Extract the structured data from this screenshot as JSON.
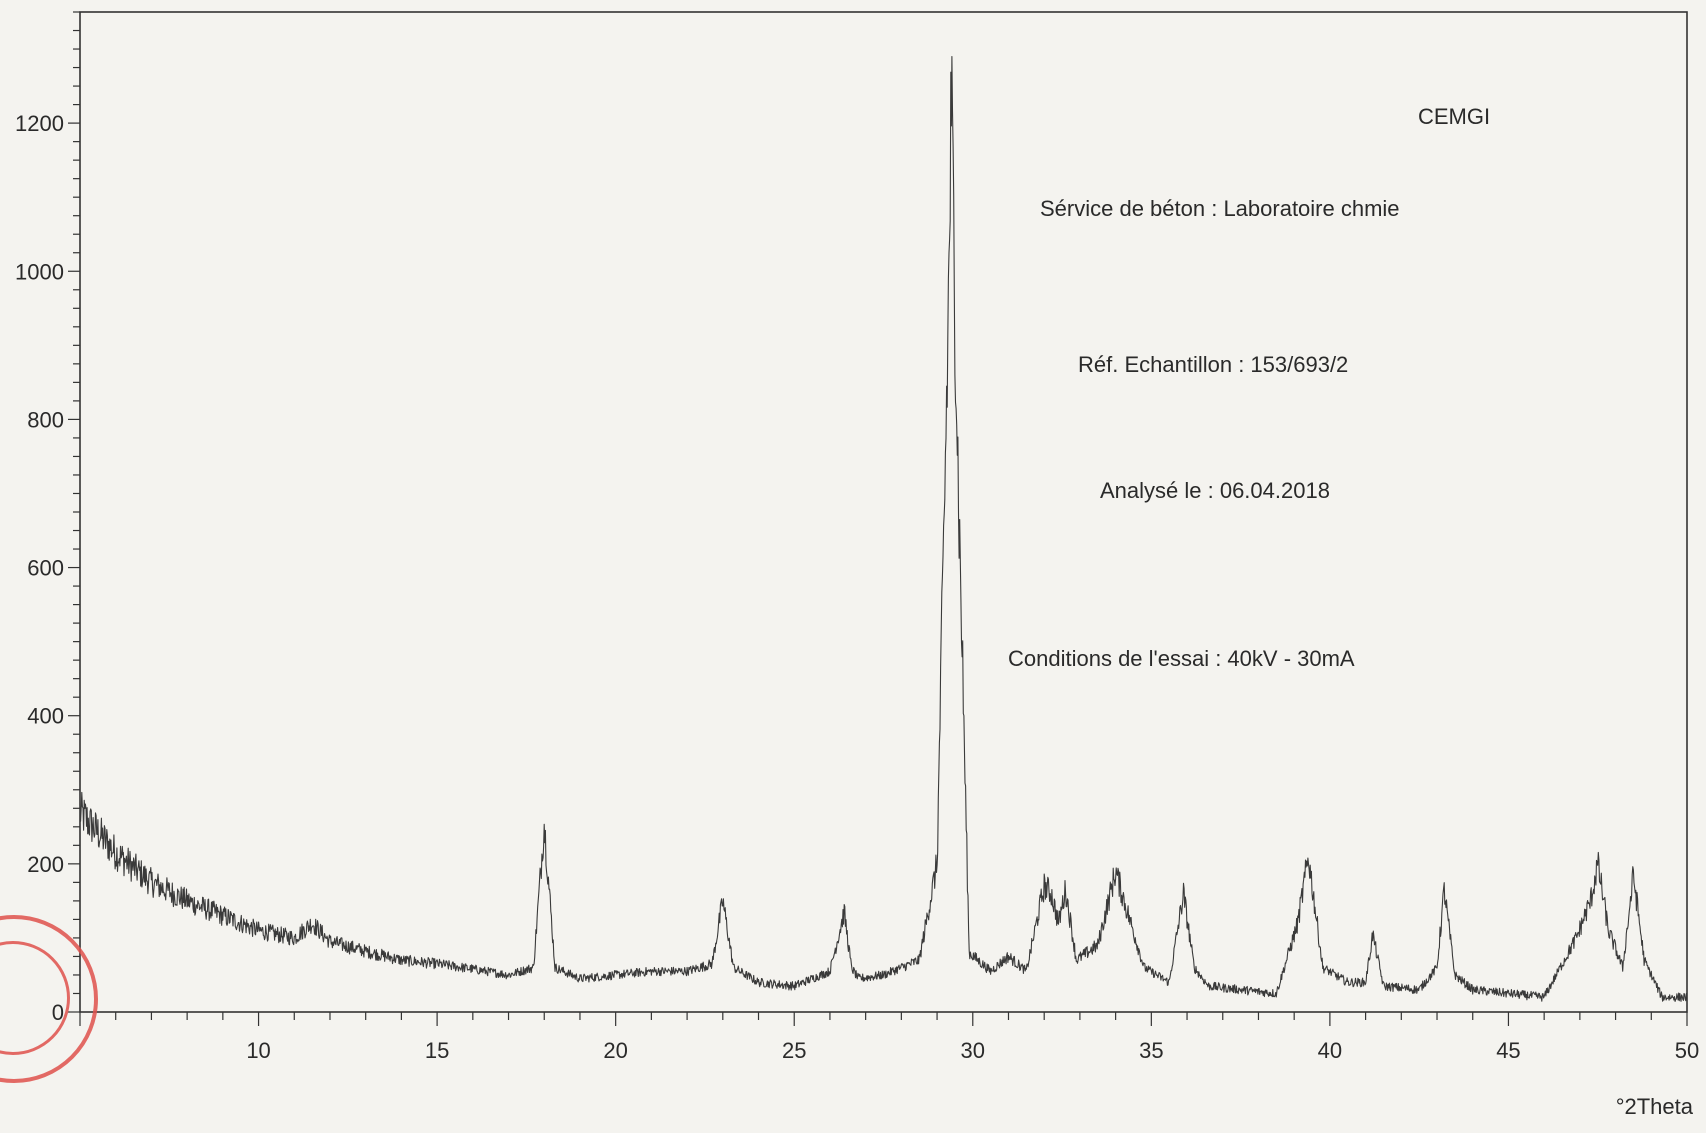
{
  "chart_data": {
    "type": "line",
    "title": "",
    "xlabel": "°2Theta",
    "ylabel": "",
    "xlim": [
      5,
      50
    ],
    "ylim": [
      0,
      1350
    ],
    "x_ticks": [
      10,
      15,
      20,
      25,
      30,
      35,
      40,
      45,
      50
    ],
    "y_ticks": [
      0,
      200,
      400,
      600,
      800,
      1000,
      1200
    ],
    "grid": false,
    "legend": "none",
    "annotations": {
      "lab": "CEMGI",
      "service": "Sérvice de béton : Laboratoire chmie",
      "ref": "Réf. Echantillon : 153/693/2",
      "date": "Analysé le : 06.04.2018",
      "conditions": "Conditions de l'essai : 40kV - 30mA"
    },
    "series": [
      {
        "x": [
          5.0,
          6.0,
          7.0,
          8.0,
          9.0,
          10.0,
          11.0,
          11.5,
          12.0,
          13.0,
          14.0,
          15.0,
          16.0,
          17.0,
          17.7,
          18.0,
          18.3,
          19.0,
          20.0,
          21.0,
          22.0,
          22.7,
          23.0,
          23.3,
          24.0,
          25.0,
          26.0,
          26.4,
          26.6,
          26.8,
          27.5,
          28.5,
          29.0,
          29.3,
          29.4,
          29.6,
          29.9,
          30.5,
          31.0,
          31.5,
          32.0,
          32.2,
          32.4,
          32.6,
          32.9,
          33.5,
          34.0,
          34.3,
          34.8,
          35.5,
          35.9,
          36.2,
          36.6,
          37.5,
          38.5,
          39.1,
          39.4,
          39.8,
          40.5,
          41.0,
          41.2,
          41.5,
          42.5,
          43.0,
          43.2,
          43.5,
          44.0,
          45.0,
          46.0,
          46.9,
          47.3,
          47.5,
          47.8,
          48.2,
          48.5,
          48.8,
          49.3,
          50.0
        ],
        "y": [
          270,
          215,
          175,
          150,
          130,
          110,
          100,
          120,
          95,
          82,
          70,
          65,
          58,
          50,
          60,
          255,
          60,
          45,
          50,
          55,
          55,
          65,
          150,
          60,
          40,
          35,
          55,
          135,
          60,
          45,
          50,
          70,
          200,
          900,
          1230,
          700,
          80,
          55,
          75,
          55,
          170,
          160,
          120,
          165,
          70,
          90,
          190,
          140,
          60,
          40,
          160,
          60,
          35,
          30,
          25,
          120,
          210,
          60,
          40,
          40,
          105,
          35,
          30,
          60,
          165,
          50,
          30,
          25,
          20,
          100,
          150,
          200,
          110,
          60,
          185,
          70,
          20,
          20
        ]
      }
    ]
  }
}
